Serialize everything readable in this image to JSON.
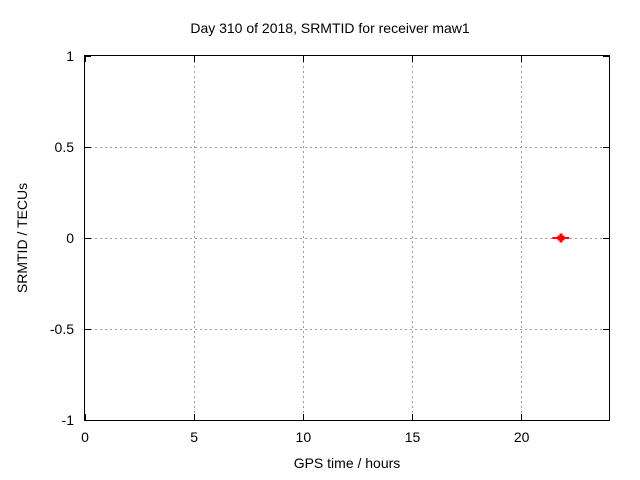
{
  "chart_data": {
    "type": "scatter",
    "title": "Day 310 of 2018, SRMTID for receiver maw1",
    "xlabel": "GPS time / hours",
    "ylabel": "SRMTID / TECUs",
    "xlim": [
      0,
      24
    ],
    "ylim": [
      -1,
      1
    ],
    "grid": true,
    "legend_position": "none",
    "frame_color": "#000000",
    "grid_color": "#9b9b9b",
    "background_color": "#ffffff",
    "x_ticks": [
      {
        "value": 0,
        "label": "0"
      },
      {
        "value": 5,
        "label": "5"
      },
      {
        "value": 10,
        "label": "10"
      },
      {
        "value": 15,
        "label": "15"
      },
      {
        "value": 20,
        "label": "20"
      }
    ],
    "y_ticks": [
      {
        "value": 1,
        "label": "1"
      },
      {
        "value": 0.5,
        "label": "0.5"
      },
      {
        "value": 0,
        "label": "0"
      },
      {
        "value": -0.5,
        "label": "-0.5"
      },
      {
        "value": -1,
        "label": "-1"
      }
    ],
    "series": [
      {
        "name": "SRMTID",
        "marker": "plus-with-x-errorbar",
        "color": "#ff0000",
        "points": [
          {
            "x": 21.8,
            "y": 0.0,
            "xerr": 0.4
          }
        ]
      }
    ]
  }
}
